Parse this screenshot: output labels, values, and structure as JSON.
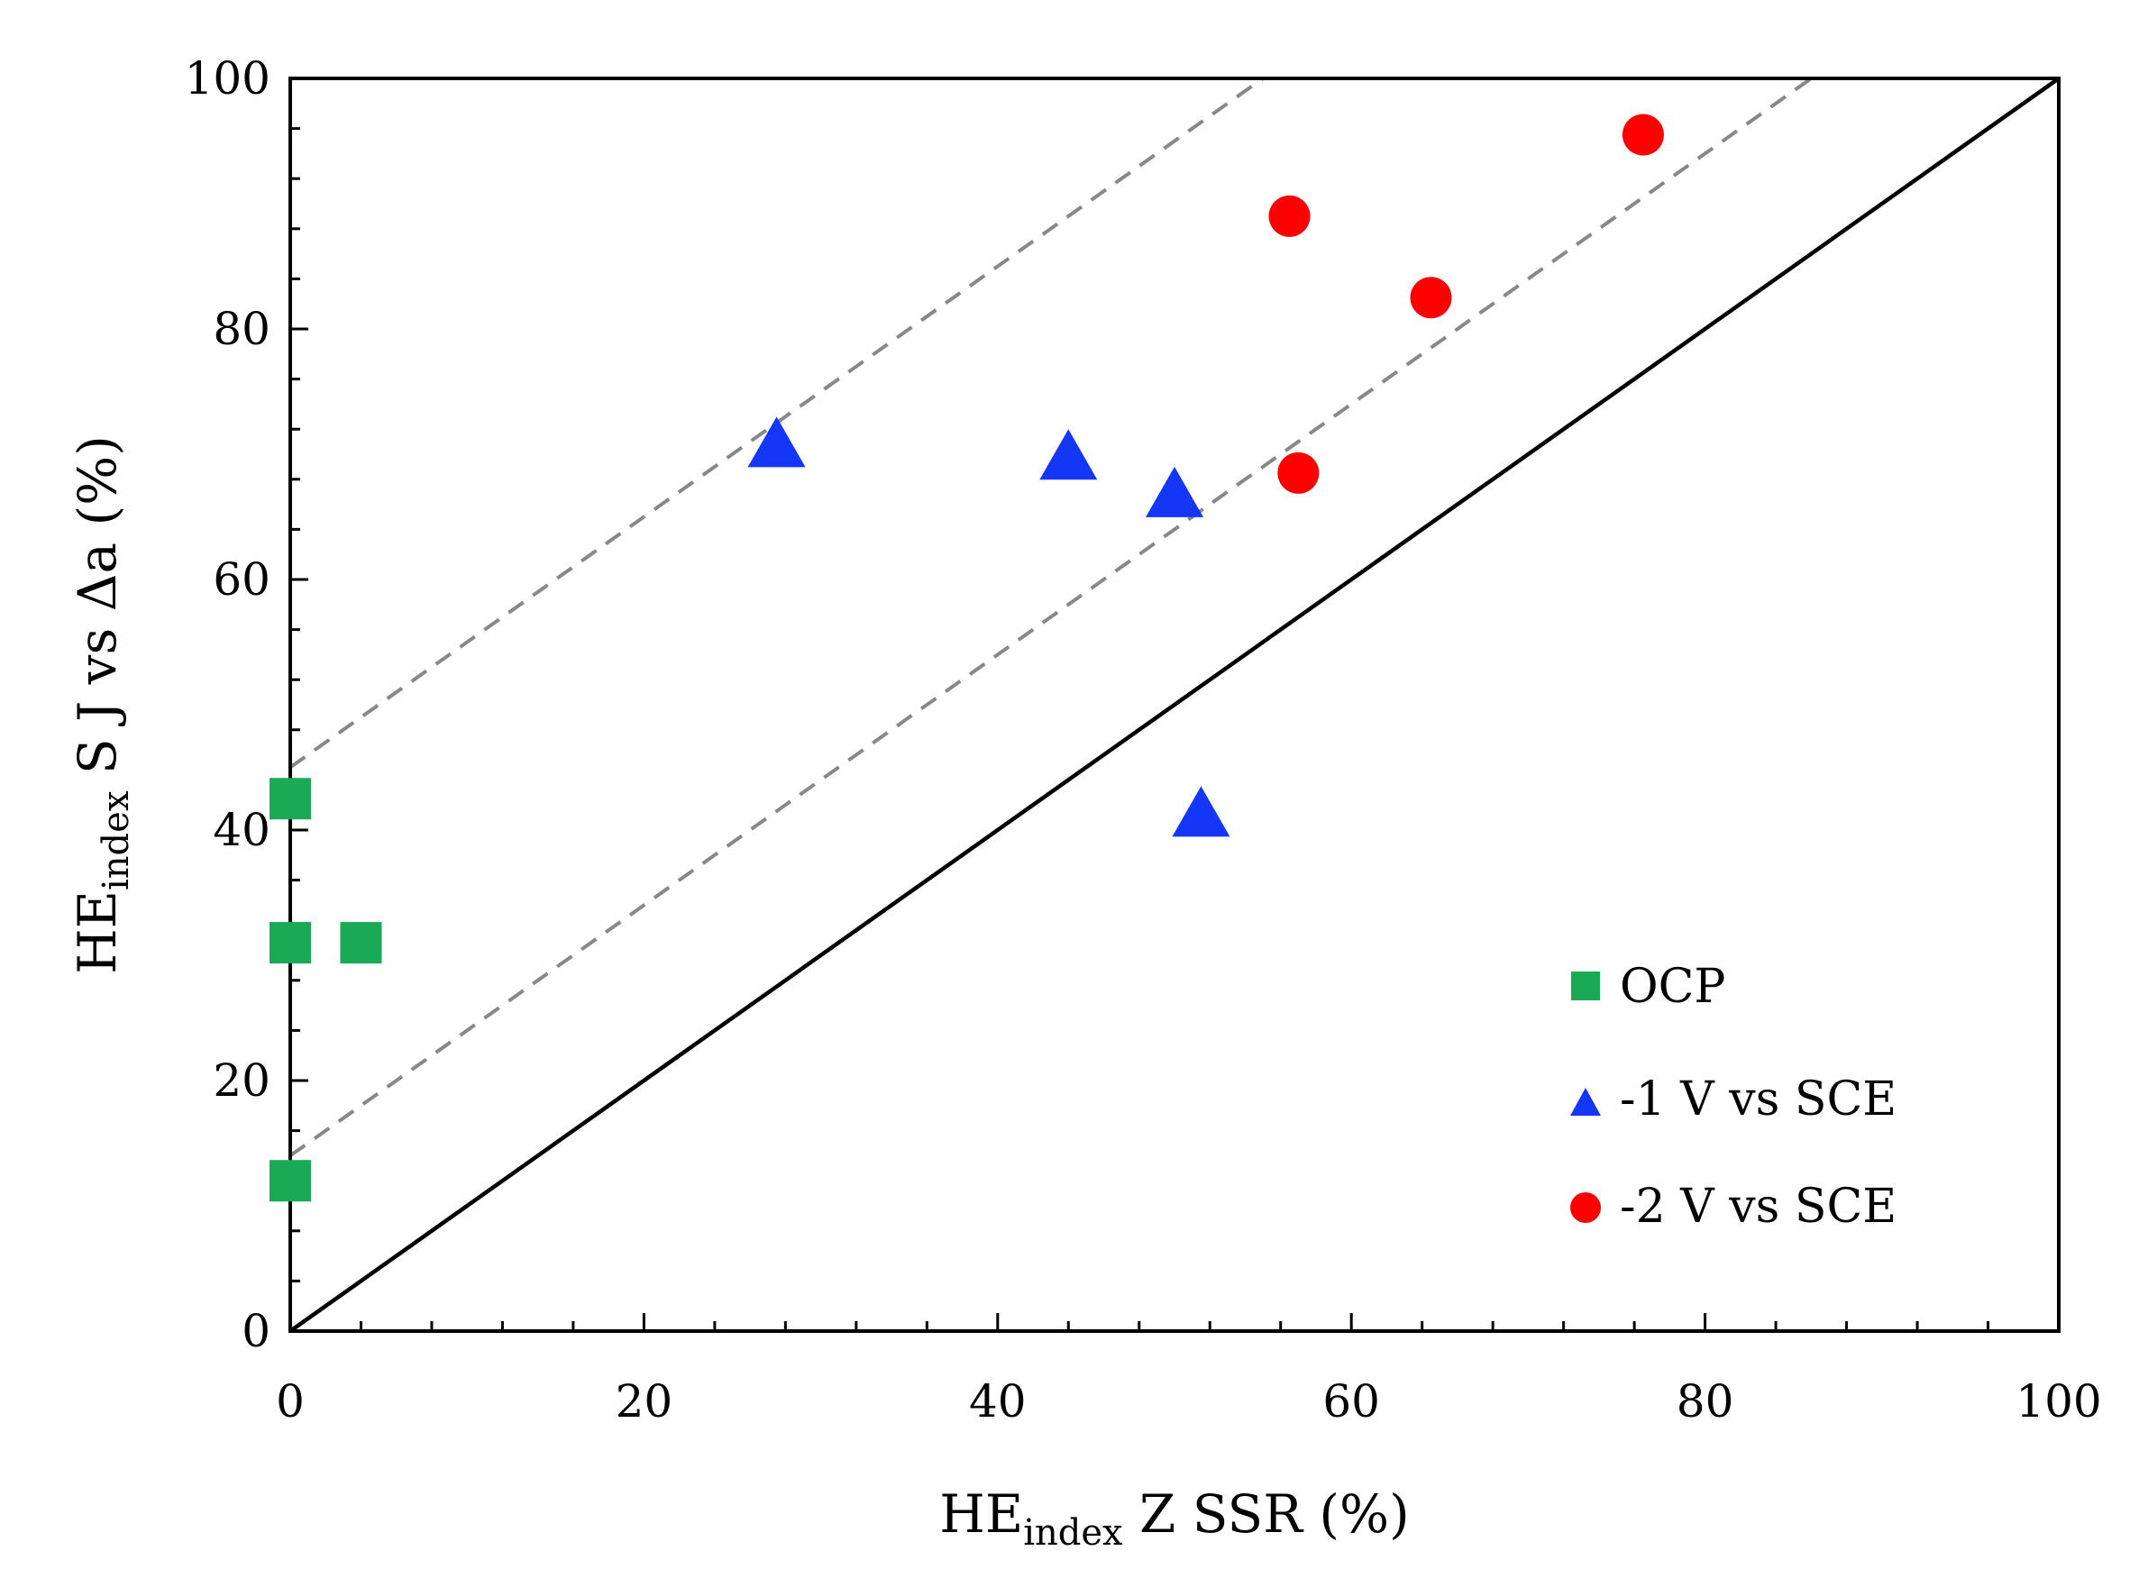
{
  "chart_data": {
    "type": "scatter",
    "title": "",
    "xlabel": {
      "main": "HE",
      "sub": "index",
      "rest": " Z SSR (%)"
    },
    "ylabel": {
      "main": "HE",
      "sub": "index",
      "rest": " S J vs Δa (%)"
    },
    "xlim": [
      0,
      100
    ],
    "ylim": [
      0,
      100
    ],
    "xticks": [
      0,
      20,
      40,
      60,
      80,
      100
    ],
    "yticks": [
      0,
      20,
      40,
      60,
      80,
      100
    ],
    "grid": false,
    "legend_position": "bottom-right",
    "reference_lines": [
      {
        "name": "identity",
        "style": "solid",
        "color": "#000000",
        "slope": 1,
        "intercept": 0
      },
      {
        "name": "offset-low",
        "style": "dashed",
        "color": "#888888",
        "slope": 1,
        "intercept": 14
      },
      {
        "name": "offset-high",
        "style": "dashed",
        "color": "#888888",
        "slope": 1,
        "intercept": 45
      }
    ],
    "series": [
      {
        "name": "OCP",
        "marker": "square",
        "color": "#1aaa55",
        "points": [
          {
            "x": 0,
            "y": 42.5
          },
          {
            "x": 0,
            "y": 31
          },
          {
            "x": 4,
            "y": 31
          },
          {
            "x": 0,
            "y": 12
          }
        ]
      },
      {
        "name": "-1 V vs SCE",
        "marker": "triangle",
        "color": "#1437f5",
        "points": [
          {
            "x": 27.5,
            "y": 70.5
          },
          {
            "x": 44,
            "y": 69.5
          },
          {
            "x": 50,
            "y": 66.5
          },
          {
            "x": 51.5,
            "y": 41
          }
        ]
      },
      {
        "name": "-2 V vs SCE",
        "marker": "circle",
        "color": "#ff0000",
        "points": [
          {
            "x": 56.5,
            "y": 89
          },
          {
            "x": 64.5,
            "y": 82.5
          },
          {
            "x": 57,
            "y": 68.5
          },
          {
            "x": 76.5,
            "y": 95.5
          }
        ]
      }
    ]
  }
}
